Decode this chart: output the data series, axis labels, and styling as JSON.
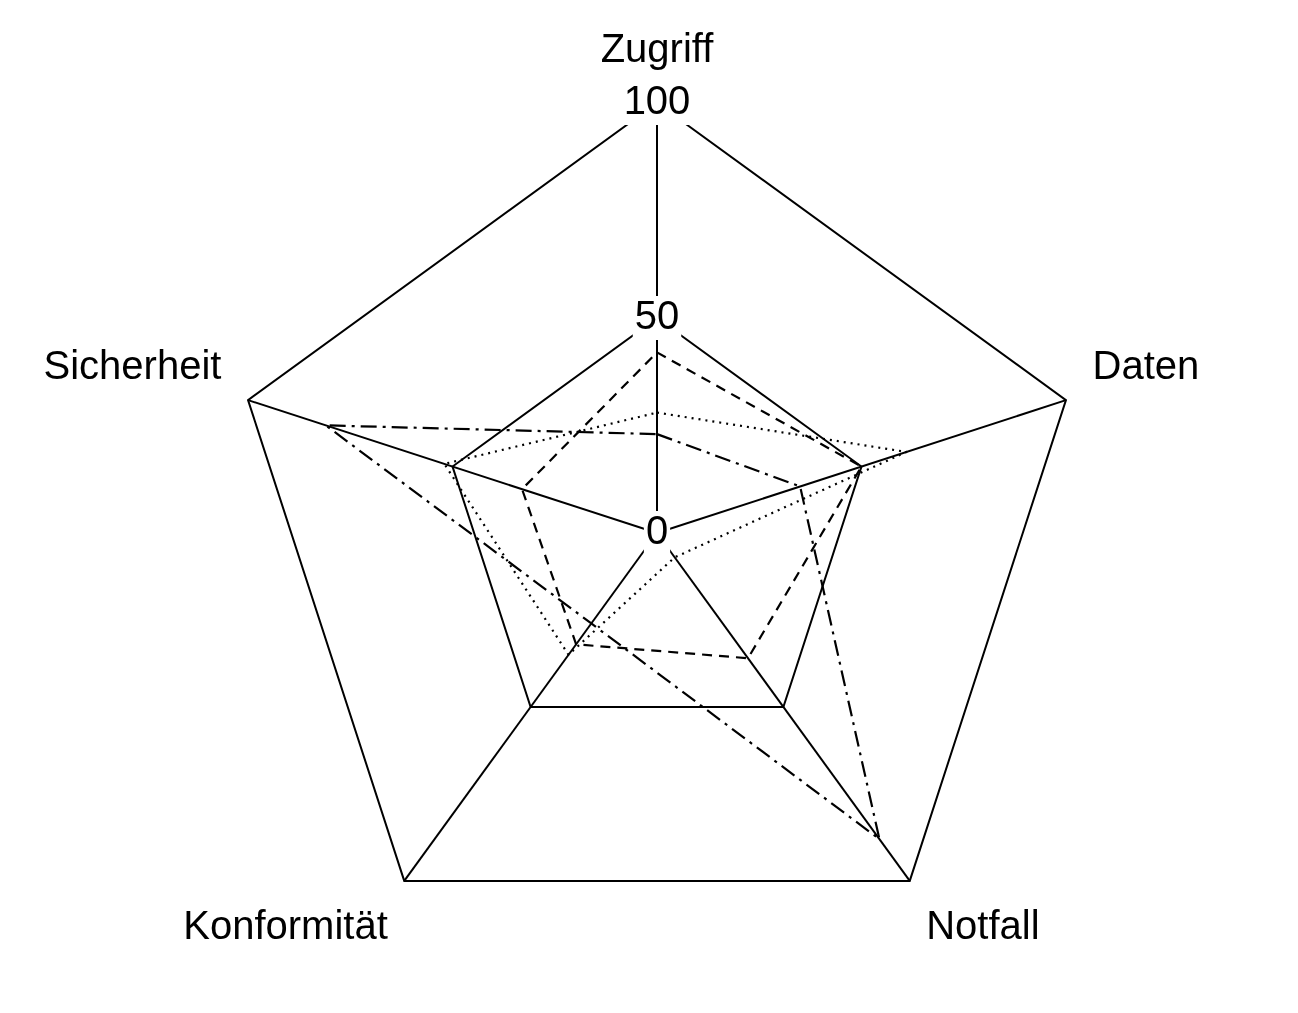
{
  "chart_data": {
    "type": "radar",
    "categories": [
      "Zugriff",
      "Daten",
      "Notfall",
      "Konformität",
      "Sicherheit"
    ],
    "series": [
      {
        "color": "#000000",
        "line_style": "dashed",
        "values": [
          42,
          50,
          36,
          32,
          33
        ]
      },
      {
        "color": "#000000",
        "line_style": "dotted",
        "values": [
          28,
          61,
          7,
          35,
          52
        ]
      },
      {
        "color": "#000000",
        "line_style": "dashdot",
        "values": [
          23,
          35,
          88,
          26,
          81
        ]
      }
    ],
    "ylim": [
      0,
      100
    ],
    "yticks": [
      0,
      50,
      100
    ],
    "grid": true,
    "legend": false,
    "marker": "none"
  }
}
